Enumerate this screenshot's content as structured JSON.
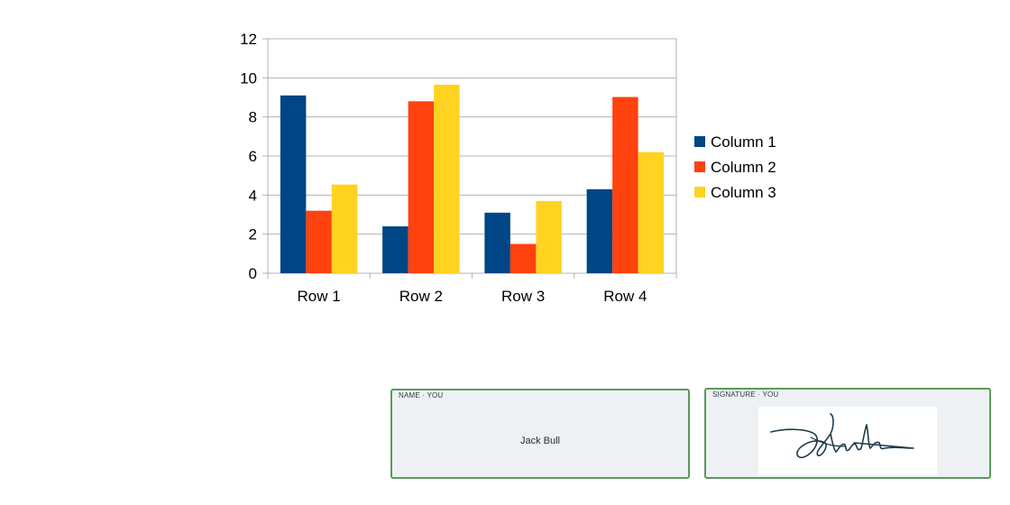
{
  "chart_data": {
    "type": "bar",
    "categories": [
      "Row 1",
      "Row 2",
      "Row 3",
      "Row 4"
    ],
    "series": [
      {
        "name": "Column 1",
        "color": "#004586",
        "values": [
          9.1,
          2.4,
          3.1,
          4.3
        ]
      },
      {
        "name": "Column 2",
        "color": "#ff420e",
        "values": [
          3.2,
          8.8,
          1.5,
          9.02
        ]
      },
      {
        "name": "Column 3",
        "color": "#ffd320",
        "values": [
          4.54,
          9.65,
          3.7,
          6.2
        ]
      }
    ],
    "ylim": [
      0,
      12
    ],
    "yticks": [
      0,
      2,
      4,
      6,
      8,
      10,
      12
    ],
    "grid": true,
    "legend": "right"
  },
  "fields": {
    "name": {
      "label": "NAME · YOU",
      "value": "Jack Bull"
    },
    "signature": {
      "label": "SIGNATURE · YOU",
      "signer": "Jack Bull"
    }
  }
}
